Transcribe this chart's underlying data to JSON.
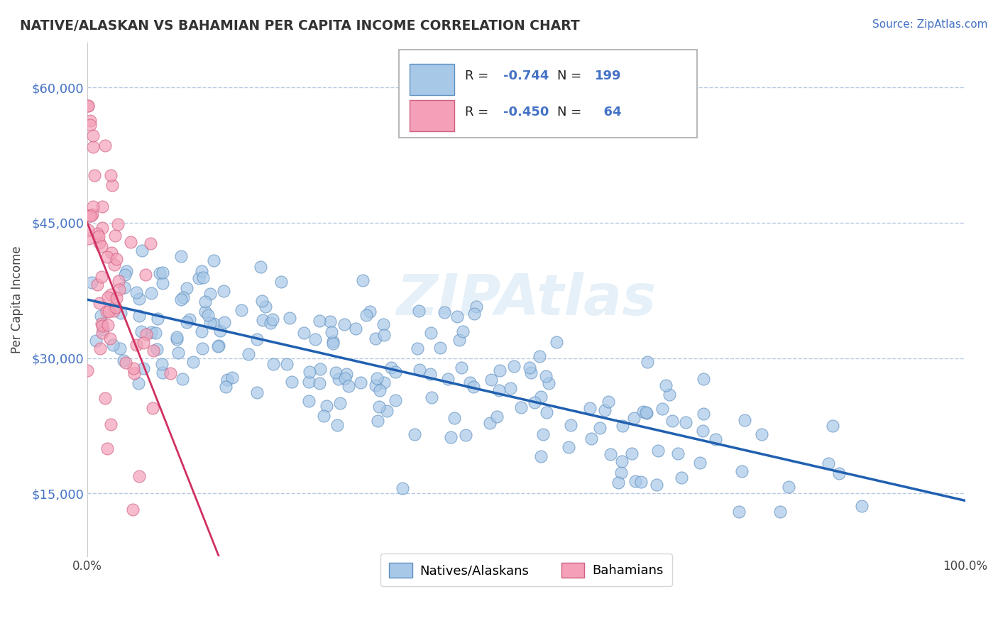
{
  "title": "NATIVE/ALASKAN VS BAHAMIAN PER CAPITA INCOME CORRELATION CHART",
  "source": "Source: ZipAtlas.com",
  "ylabel": "Per Capita Income",
  "xlim": [
    0.0,
    100.0
  ],
  "ylim": [
    8000,
    65000
  ],
  "yticks": [
    15000,
    30000,
    45000,
    60000
  ],
  "ytick_labels": [
    "$15,000",
    "$30,000",
    "$45,000",
    "$60,000"
  ],
  "xticks": [
    0.0,
    100.0
  ],
  "xtick_labels": [
    "0.0%",
    "100.0%"
  ],
  "blue_scatter_color": "#a8c8e8",
  "blue_edge_color": "#6090c0",
  "pink_scatter_color": "#f4a0b8",
  "pink_edge_color": "#d06080",
  "blue_line_color": "#2060b0",
  "pink_line_color": "#d03060",
  "watermark": "ZIPAtlas",
  "legend_blue_label": "Natives/Alaskans",
  "legend_pink_label": "Bahamians",
  "R_blue": -0.744,
  "N_blue": 199,
  "R_pink": -0.45,
  "N_pink": 64,
  "title_color": "#333333",
  "axis_color": "#4472c4",
  "grid_color": "#b0c4de",
  "background_color": "#ffffff"
}
